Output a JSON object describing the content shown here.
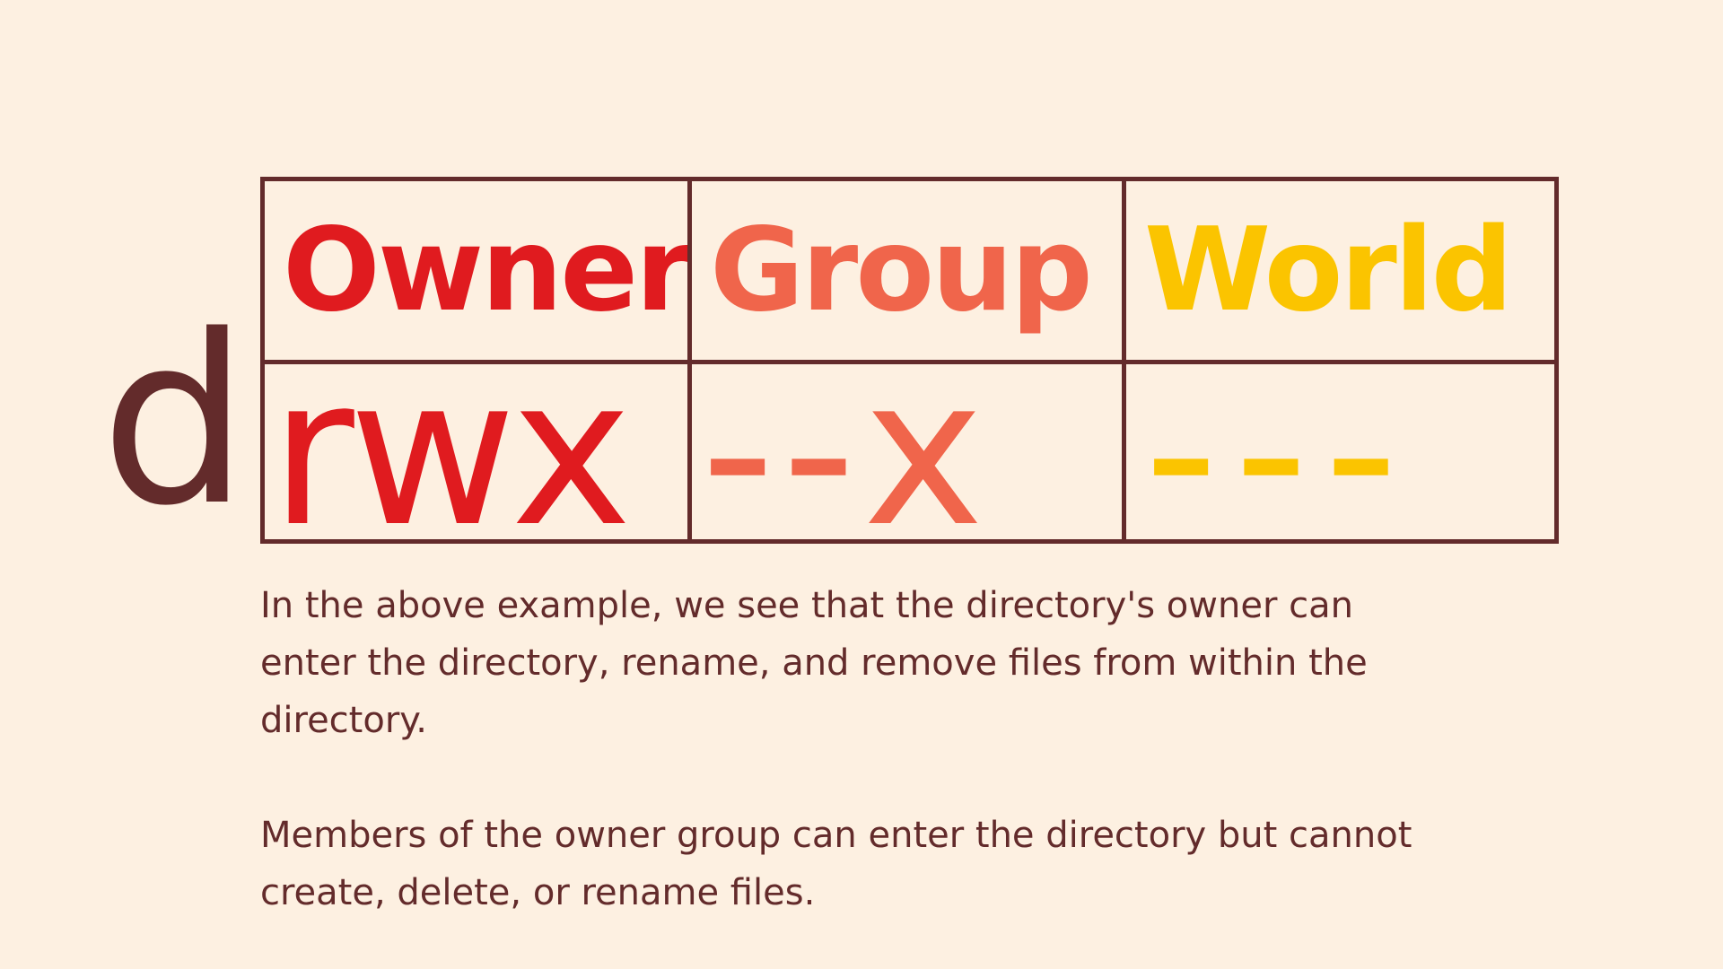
{
  "diagram": {
    "type_char": "d",
    "headers": {
      "owner": "Owner",
      "group": "Group",
      "world": "World"
    },
    "permissions": {
      "owner": "rwx",
      "group": "--x",
      "world": "---"
    },
    "colors": {
      "background": "#fdf0e1",
      "border_and_text": "#632b2b",
      "owner": "#e01b1f",
      "group": "#f0654b",
      "world": "#fbc400"
    }
  },
  "explanation": {
    "paragraph_1": "In the above example, we see that the directory's owner can enter the directory, rename, and remove files from within the directory.",
    "paragraph_2": "Members of the owner group can enter the directory but cannot create, delete, or rename files."
  }
}
